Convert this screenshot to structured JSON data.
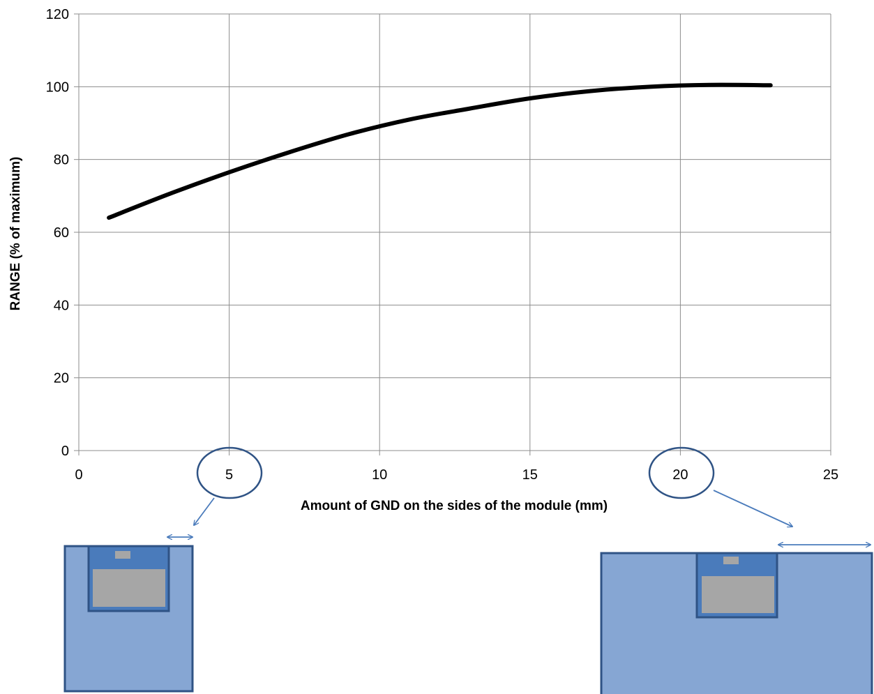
{
  "chart_data": {
    "type": "line",
    "title": "",
    "xlabel": "Amount of GND on the sides of the module (mm)",
    "ylabel": "RANGE (% of maximum)",
    "xlim": [
      0,
      25
    ],
    "ylim": [
      0,
      120
    ],
    "x_ticks": [
      "0",
      "5",
      "10",
      "15",
      "20",
      "25"
    ],
    "y_ticks": [
      "0",
      "20",
      "40",
      "60",
      "80",
      "100",
      "120"
    ],
    "grid": true,
    "legend": "none",
    "series": [
      {
        "color": "#000000",
        "x": [
          1,
          3,
          5,
          7,
          9,
          11,
          13,
          15,
          17,
          19,
          21,
          23
        ],
        "y": [
          64,
          70.5,
          76.5,
          82,
          87,
          91,
          94,
          96.8,
          98.8,
          100,
          100.5,
          100.4
        ]
      }
    ],
    "annotations": [
      {
        "type": "circle",
        "target_x_tick": "5"
      },
      {
        "type": "circle",
        "target_x_tick": "20"
      }
    ]
  },
  "illustrations": {
    "board_fill": "#86a6d3",
    "board_border": "#2f5385",
    "module_fill": "#4a7bbb",
    "chip_fill": "#a6a6a6",
    "arrow_color": "#4a7bbb",
    "circle_color": "#2f5385",
    "small_board_gnd_mm": 5,
    "large_board_gnd_mm": 20
  }
}
